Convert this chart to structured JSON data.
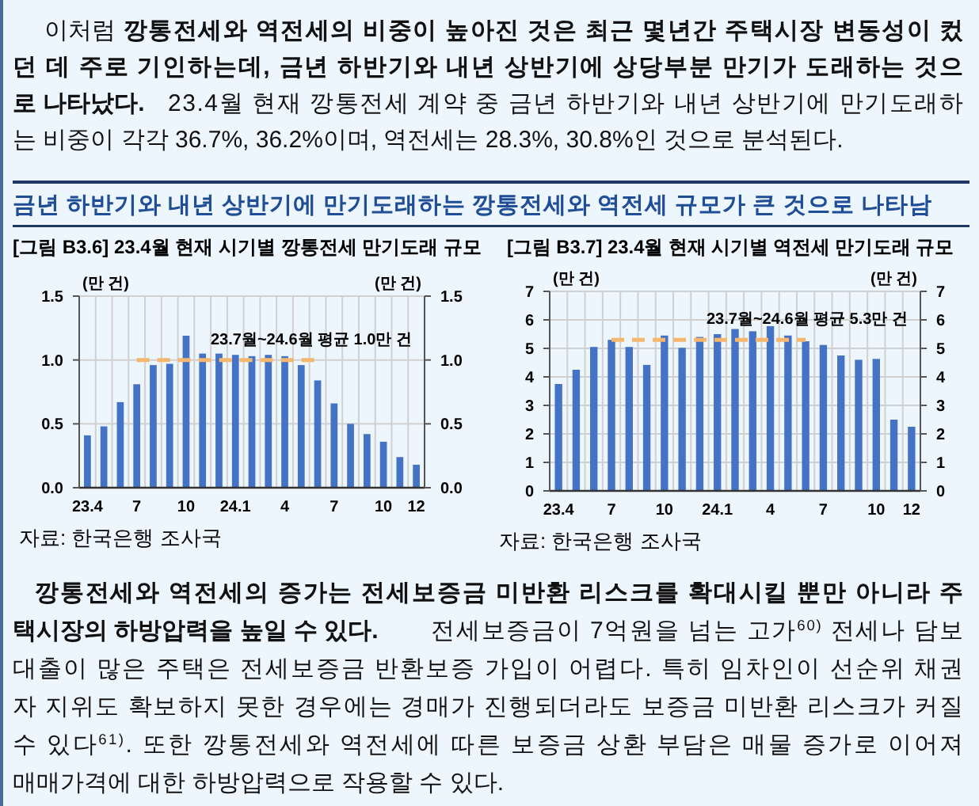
{
  "chart_data": [
    {
      "type": "bar",
      "title": "[그림 B3.6] 23.4월 현재 시기별 깡통전세 만기도래 규모",
      "ylabel": "(만 건)",
      "y2label": "(만 건)",
      "categories": [
        "23.4",
        null,
        null,
        "7",
        null,
        null,
        "10",
        null,
        null,
        "24.1",
        null,
        null,
        "4",
        null,
        null,
        "7",
        null,
        null,
        "10",
        null,
        "12"
      ],
      "series": [
        {
          "color": "#4472c4",
          "values": [
            0.41,
            0.48,
            0.67,
            0.81,
            0.96,
            0.97,
            1.19,
            1.05,
            1.05,
            1.04,
            1.03,
            1.04,
            1.03,
            0.96,
            0.84,
            0.66,
            0.5,
            0.42,
            0.36,
            0.24,
            0.18
          ]
        },
        {
          "type": "line",
          "color": "#f5b76e",
          "line_style": "dashed",
          "values": [
            null,
            null,
            null,
            1.0,
            1.0,
            1.0,
            1.0,
            1.0,
            1.0,
            1.0,
            1.0,
            1.0,
            1.0,
            1.0,
            1.0,
            null,
            null,
            null,
            null,
            null,
            null
          ]
        }
      ],
      "ylim": [
        0,
        1.5
      ],
      "yticks": [
        {
          "value": 0,
          "label": "0.0"
        },
        0.5,
        {
          "value": 1,
          "label": "1.0"
        },
        1.5
      ],
      "y2lim": [
        0,
        1.5
      ],
      "y2ticks": [
        {
          "value": 0,
          "label": "0.0"
        },
        0.5,
        {
          "value": 1,
          "label": "1.0"
        },
        1.5
      ],
      "grid": true,
      "annotations": [
        "23.7월~24.6월 평균 1.0만 건",
        "자료: 한국은행 조사국",
        "이처럼",
        "깡통전세와 역전세의 비중이 높아진 것은 최근 몇년간 주택시장 변동성이 컸",
        "던 데 주로 기인하는데, 금년 하반기와 내년 상반기에 상당부분 만기가 도래하는 것으",
        "로 나타났다.",
        "23.4월 현재 깡통전세 계약 중 금년 하반기와 내년 상반기에 만기도래하",
        "는 비중이 각각 36.7%, 36.2%이며, 역전세는 28.3%, 30.8%인 것으로 분석된다.",
        "금년 하반기와 내년 상반기에 만기도래하는 깡통전세와 역전세 규모가 큰 것으로 나타남"
      ]
    },
    {
      "type": "bar",
      "title": "[그림 B3.7] 23.4월 현재 시기별 역전세 만기도래 규모",
      "ylabel": "(만 건)",
      "y2label": "(만 건)",
      "categories": [
        "23.4",
        null,
        null,
        "7",
        null,
        null,
        "10",
        null,
        null,
        "24.1",
        null,
        null,
        "4",
        null,
        null,
        "7",
        null,
        null,
        "10",
        null,
        "12"
      ],
      "series": [
        {
          "color": "#4472c4",
          "values": [
            3.75,
            4.25,
            5.05,
            5.3,
            5.05,
            4.42,
            5.45,
            5.02,
            5.4,
            5.5,
            5.68,
            5.6,
            5.78,
            5.45,
            5.25,
            5.12,
            4.75,
            4.6,
            4.63,
            2.5,
            2.25
          ]
        },
        {
          "type": "line",
          "color": "#f5b76e",
          "line_style": "dashed",
          "values": [
            null,
            null,
            null,
            5.3,
            5.3,
            5.3,
            5.3,
            5.3,
            5.3,
            5.3,
            5.3,
            5.3,
            5.3,
            5.3,
            5.3,
            null,
            null,
            null,
            null,
            null,
            null
          ]
        }
      ],
      "ylim": [
        0,
        7
      ],
      "yticks": [
        0,
        1,
        2,
        3,
        4,
        5,
        6,
        7
      ],
      "y2lim": [
        0,
        7
      ],
      "y2ticks": [
        0,
        1,
        2,
        3,
        4,
        5,
        6,
        7
      ],
      "grid": true,
      "annotations": [
        "23.7월~24.6월 평균 5.3만 건",
        "자료: 한국은행 조사국",
        "깡통전세와 역전세의 증가는 전세보증금 미반환 리스크를 확대시킬 뿐만 아니라 주",
        "택시장의 하방압력을 높일 수 있다.",
        "전세보증금이 7억원을 넘는 고가$^{60)}$ 전세나 담보",
        "대출이 많은 주택은 전세보증금 반환보증 가입이 어렵다. 특히 임차인이 선순위 채권",
        "자 지위도 확보하지 못한 경우에는 경매가 진행되더라도 보증금 미반환 리스크가 커질",
        "수 있다$^{61)}$. 또한 깡통전세와 역전세에 따른 보증금 상환 부담은 매물 증가로 이어져",
        "매매가격에 대한 하방압력으로 작용할 수 있다."
      ]
    }
  ]
}
